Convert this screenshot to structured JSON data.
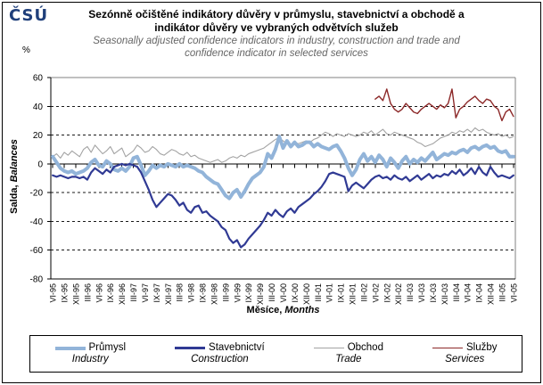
{
  "logo": "ČSÚ",
  "header": {
    "title_line1": "Sezónně očištěné indikátory důvěry v průmyslu, stavebnictví a obchodě a",
    "title_line2": "indikátor důvěry ve vybraných odvětvích služeb",
    "subtitle_line1": "Seasonally adjusted confidence indicators in industry, construction and trade and",
    "subtitle_line2": "confidence indicator in selected services"
  },
  "y_unit": "%",
  "chart_data": {
    "type": "line",
    "title": "Sezónně očištěné indikátory důvěry v průmyslu, stavebnictví a obchodě a indikátor důvěry ve vybraných odvětvích služeb",
    "title_en": "Seasonally adjusted confidence indicators in industry, construction and trade and confidence indicator in selected services",
    "ylabel_cs": "Salda,",
    "ylabel_en": "Balances",
    "xlabel_cs": "Měsíce,",
    "xlabel_en": "Months",
    "y_unit": "%",
    "ylim": [
      -80,
      60
    ],
    "ytick_step": 20,
    "y_ticks": [
      60,
      40,
      20,
      0,
      -20,
      -40,
      -60,
      -80
    ],
    "grid": "horizontal-dashed",
    "legend_position": "bottom",
    "x_frequency": "monthly",
    "x_start": "VI-95",
    "x_end": "VI-05",
    "x_tick_every_n_months": 3,
    "x_tick_labels": [
      "VI-95",
      "IX-95",
      "XII-95",
      "III-96",
      "VI-96",
      "IX-96",
      "XII-96",
      "III-97",
      "VI-97",
      "IX-97",
      "XII-97",
      "III-98",
      "VI-98",
      "IX-98",
      "XII-98",
      "III-99",
      "VI-99",
      "IX-99",
      "XII-99",
      "III-00",
      "VI-00",
      "IX-00",
      "XII-00",
      "III-01",
      "VI-01",
      "IX-01",
      "XII-01",
      "III-02",
      "VI-02",
      "IX-02",
      "XII-02",
      "III-03",
      "VI-03",
      "IX-03",
      "XII-03",
      "III-04",
      "VI-04",
      "IX-04",
      "XII-04",
      "III-05",
      "VI-05"
    ],
    "series": [
      {
        "name_cs": "Průmysl",
        "name_en": "Industry",
        "color": "#92B4D9",
        "line_width": 4,
        "start_index": 0,
        "values": [
          5,
          1,
          -3,
          -5,
          -6,
          -5,
          -7,
          -6,
          -5,
          -3,
          1,
          3,
          -1,
          -2,
          2,
          0,
          -4,
          -5,
          -3,
          -5,
          -2,
          4,
          5,
          -1,
          -8,
          -5,
          -1,
          -3,
          -1,
          -2,
          0,
          -1,
          -2,
          0,
          -2,
          -1,
          -2,
          -3,
          -5,
          -6,
          -9,
          -11,
          -13,
          -14,
          -18,
          -22,
          -24,
          -20,
          -18,
          -23,
          -19,
          -14,
          -10,
          -8,
          -6,
          -2,
          7,
          4,
          10,
          19,
          11,
          16,
          12,
          15,
          12,
          13,
          15,
          15,
          12,
          14,
          12,
          11,
          10,
          12,
          13,
          9,
          4,
          -3,
          -8,
          -4,
          3,
          7,
          2,
          5,
          1,
          6,
          3,
          -2,
          4,
          1,
          -3,
          2,
          5,
          0,
          3,
          1,
          4,
          2,
          5,
          8,
          3,
          5,
          7,
          6,
          8,
          7,
          9,
          10,
          8,
          11,
          12,
          10,
          12,
          13,
          11,
          12,
          9,
          8,
          9,
          5,
          5
        ]
      },
      {
        "name_cs": "Stavebnictví",
        "name_en": "Construction",
        "color": "#303A94",
        "line_width": 2.2,
        "start_index": 0,
        "values": [
          -8,
          -9,
          -8,
          -9,
          -10,
          -9,
          -9,
          -10,
          -9,
          -11,
          -6,
          -3,
          -5,
          -7,
          -4,
          -6,
          -2,
          -1,
          0,
          -1,
          0,
          -1,
          -2,
          -6,
          -12,
          -18,
          -25,
          -30,
          -27,
          -24,
          -21,
          -22,
          -25,
          -29,
          -27,
          -32,
          -34,
          -30,
          -29,
          -34,
          -33,
          -36,
          -38,
          -40,
          -44,
          -46,
          -52,
          -55,
          -53,
          -58,
          -56,
          -52,
          -49,
          -46,
          -43,
          -39,
          -34,
          -36,
          -32,
          -35,
          -37,
          -33,
          -31,
          -34,
          -30,
          -28,
          -26,
          -24,
          -21,
          -19,
          -16,
          -12,
          -7,
          -6,
          -7,
          -8,
          -9,
          -19,
          -15,
          -13,
          -15,
          -17,
          -14,
          -11,
          -9,
          -8,
          -10,
          -9,
          -11,
          -8,
          -10,
          -11,
          -9,
          -12,
          -10,
          -8,
          -11,
          -9,
          -7,
          -10,
          -8,
          -9,
          -7,
          -8,
          -5,
          -7,
          -4,
          -8,
          -6,
          -3,
          -7,
          -2,
          -6,
          -8,
          -2,
          -6,
          -9,
          -8,
          -9,
          -10,
          -8
        ]
      },
      {
        "name_cs": "Obchod",
        "name_en": "Trade",
        "color": "#A3A3A3",
        "line_width": 1.1,
        "start_index": 0,
        "values": [
          5,
          7,
          4,
          8,
          6,
          9,
          7,
          5,
          10,
          12,
          8,
          13,
          10,
          7,
          9,
          12,
          7,
          9,
          11,
          5,
          7,
          9,
          13,
          11,
          8,
          9,
          12,
          10,
          7,
          6,
          8,
          10,
          9,
          7,
          6,
          8,
          5,
          6,
          4,
          3,
          2,
          1,
          2,
          3,
          1,
          2,
          4,
          5,
          4,
          6,
          5,
          7,
          8,
          9,
          10,
          11,
          13,
          15,
          17,
          18,
          16,
          14,
          13,
          15,
          14,
          15,
          16,
          15,
          17,
          18,
          20,
          22,
          21,
          19,
          21,
          20,
          19,
          21,
          20,
          19,
          20,
          22,
          21,
          23,
          20,
          22,
          24,
          21,
          20,
          22,
          21,
          20,
          19,
          18,
          17,
          15,
          14,
          12,
          13,
          14,
          16,
          18,
          19,
          20,
          22,
          21,
          23,
          22,
          24,
          22,
          25,
          23,
          24,
          22,
          21,
          20,
          21,
          19,
          20,
          18,
          19
        ]
      },
      {
        "name_cs": "Služby",
        "name_en": "Services",
        "color": "#8C2828",
        "line_width": 1.4,
        "start_index": 84,
        "values": [
          45,
          47,
          44,
          52,
          42,
          38,
          36,
          38,
          42,
          39,
          36,
          35,
          38,
          40,
          42,
          40,
          38,
          41,
          39,
          42,
          52,
          32,
          38,
          40,
          43,
          45,
          47,
          44,
          42,
          45,
          44,
          40,
          38,
          30,
          36,
          38,
          33
        ]
      }
    ]
  }
}
